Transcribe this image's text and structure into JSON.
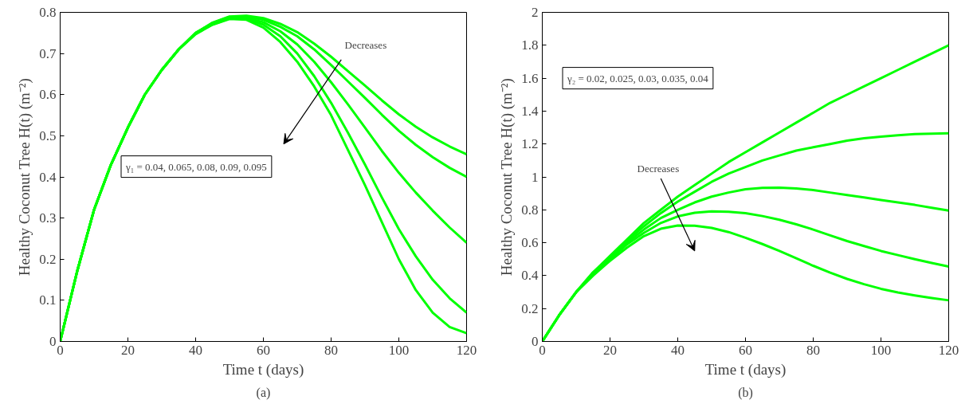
{
  "chart_data": [
    {
      "type": "line",
      "title": "(a)",
      "xlabel": "Time t (days)",
      "ylabel": "Healthy Coconut Tree H(t) (m⁻²)",
      "xlim": [
        0,
        120
      ],
      "ylim": [
        0,
        0.8
      ],
      "xticks": [
        0,
        20,
        40,
        60,
        80,
        100,
        120
      ],
      "yticks": [
        0,
        0.1,
        0.2,
        0.3,
        0.4,
        0.5,
        0.6,
        0.7,
        0.8
      ],
      "grid": false,
      "annotations": [
        "Decreases",
        "γ₁ = 0.04, 0.065, 0.08, 0.09, 0.095"
      ],
      "x": [
        0,
        5,
        10,
        15,
        20,
        25,
        30,
        35,
        40,
        45,
        50,
        55,
        60,
        65,
        70,
        75,
        80,
        85,
        90,
        95,
        100,
        105,
        110,
        115,
        120
      ],
      "series": [
        {
          "color": "#00ff00",
          "values": [
            0,
            0.17,
            0.32,
            0.43,
            0.52,
            0.6,
            0.66,
            0.71,
            0.75,
            0.775,
            0.79,
            0.792,
            0.786,
            0.772,
            0.752,
            0.724,
            0.692,
            0.657,
            0.622,
            0.586,
            0.552,
            0.522,
            0.496,
            0.474,
            0.455
          ]
        },
        {
          "color": "#00ff00",
          "values": [
            0,
            0.17,
            0.32,
            0.43,
            0.52,
            0.6,
            0.66,
            0.71,
            0.75,
            0.774,
            0.789,
            0.79,
            0.782,
            0.765,
            0.742,
            0.71,
            0.672,
            0.632,
            0.592,
            0.551,
            0.512,
            0.478,
            0.448,
            0.422,
            0.4
          ]
        },
        {
          "color": "#00ff00",
          "values": [
            0,
            0.17,
            0.32,
            0.43,
            0.52,
            0.6,
            0.66,
            0.71,
            0.75,
            0.773,
            0.787,
            0.787,
            0.776,
            0.754,
            0.722,
            0.68,
            0.63,
            0.576,
            0.52,
            0.463,
            0.41,
            0.362,
            0.318,
            0.277,
            0.24
          ]
        },
        {
          "color": "#00ff00",
          "values": [
            0,
            0.17,
            0.32,
            0.43,
            0.52,
            0.6,
            0.66,
            0.71,
            0.748,
            0.771,
            0.785,
            0.785,
            0.77,
            0.742,
            0.7,
            0.645,
            0.58,
            0.507,
            0.43,
            0.35,
            0.273,
            0.207,
            0.15,
            0.105,
            0.07
          ]
        },
        {
          "color": "#00ff00",
          "values": [
            0,
            0.17,
            0.32,
            0.43,
            0.52,
            0.6,
            0.66,
            0.71,
            0.747,
            0.77,
            0.784,
            0.782,
            0.763,
            0.728,
            0.68,
            0.62,
            0.55,
            0.465,
            0.38,
            0.29,
            0.2,
            0.125,
            0.07,
            0.035,
            0.02
          ]
        }
      ]
    },
    {
      "type": "line",
      "title": "(b)",
      "xlabel": "Time t (days)",
      "ylabel": "Healthy Coconut Tree H(t) (m⁻²)",
      "xlim": [
        0,
        120
      ],
      "ylim": [
        0,
        2
      ],
      "xticks": [
        0,
        20,
        40,
        60,
        80,
        100,
        120
      ],
      "yticks": [
        0,
        0.2,
        0.4,
        0.6,
        0.8,
        1,
        1.2,
        1.4,
        1.6,
        1.8,
        2
      ],
      "grid": false,
      "annotations": [
        "γ₂ = 0.02, 0.025, 0.03, 0.035, 0.04",
        "Decreases"
      ],
      "x": [
        0,
        5,
        10,
        15,
        20,
        25,
        30,
        35,
        40,
        45,
        50,
        55,
        60,
        65,
        70,
        75,
        80,
        85,
        90,
        95,
        100,
        105,
        110,
        115,
        120
      ],
      "series": [
        {
          "color": "#00ff00",
          "values": [
            0,
            0.16,
            0.3,
            0.42,
            0.52,
            0.62,
            0.72,
            0.8,
            0.88,
            0.95,
            1.02,
            1.09,
            1.15,
            1.21,
            1.27,
            1.33,
            1.39,
            1.45,
            1.5,
            1.55,
            1.6,
            1.65,
            1.7,
            1.75,
            1.8
          ]
        },
        {
          "color": "#00ff00",
          "values": [
            0,
            0.16,
            0.3,
            0.42,
            0.51,
            0.61,
            0.7,
            0.78,
            0.85,
            0.91,
            0.97,
            1.02,
            1.06,
            1.1,
            1.13,
            1.16,
            1.18,
            1.2,
            1.22,
            1.235,
            1.245,
            1.253,
            1.26,
            1.263,
            1.265
          ]
        },
        {
          "color": "#00ff00",
          "values": [
            0,
            0.16,
            0.3,
            0.41,
            0.5,
            0.6,
            0.68,
            0.75,
            0.8,
            0.845,
            0.88,
            0.905,
            0.925,
            0.933,
            0.935,
            0.93,
            0.92,
            0.905,
            0.89,
            0.875,
            0.86,
            0.845,
            0.83,
            0.812,
            0.795
          ]
        },
        {
          "color": "#00ff00",
          "values": [
            0,
            0.16,
            0.3,
            0.41,
            0.5,
            0.59,
            0.66,
            0.72,
            0.76,
            0.782,
            0.79,
            0.788,
            0.78,
            0.762,
            0.74,
            0.712,
            0.68,
            0.645,
            0.61,
            0.58,
            0.55,
            0.525,
            0.5,
            0.477,
            0.455
          ]
        },
        {
          "color": "#00ff00",
          "values": [
            0,
            0.16,
            0.3,
            0.4,
            0.49,
            0.57,
            0.64,
            0.685,
            0.705,
            0.703,
            0.69,
            0.665,
            0.63,
            0.592,
            0.55,
            0.505,
            0.46,
            0.418,
            0.38,
            0.348,
            0.32,
            0.298,
            0.28,
            0.264,
            0.25
          ]
        }
      ]
    }
  ]
}
